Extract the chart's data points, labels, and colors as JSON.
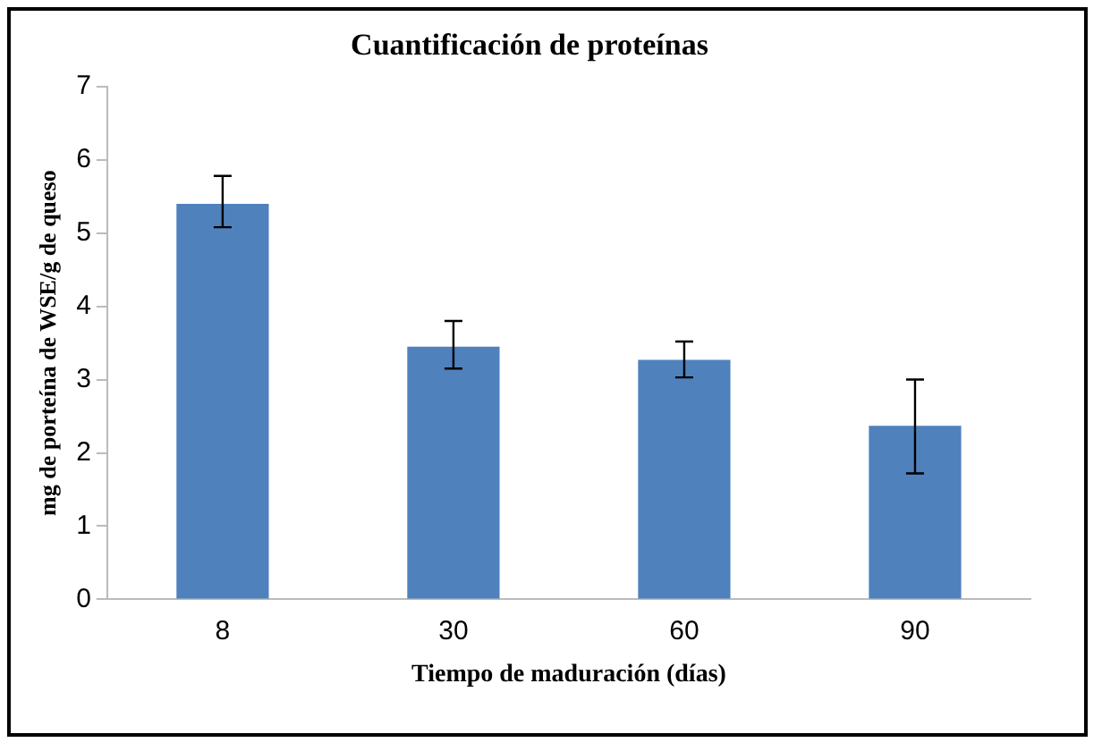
{
  "chart_data": {
    "type": "bar",
    "title": "Cuantificación de proteínas",
    "xlabel": "Tiempo de maduración (días)",
    "ylabel": "mg de porteína de WSE/g de queso",
    "categories": [
      "8",
      "30",
      "60",
      "90"
    ],
    "values": [
      5.4,
      3.45,
      3.27,
      2.37
    ],
    "errors": [
      [
        5.08,
        5.78
      ],
      [
        3.15,
        3.8
      ],
      [
        3.03,
        3.52
      ],
      [
        1.72,
        3.0
      ]
    ],
    "color": "#4f81bd",
    "ylim": [
      0,
      7
    ],
    "yticks": [
      0,
      1,
      2,
      3,
      4,
      5,
      6,
      7
    ],
    "grid": false,
    "legend": false
  }
}
